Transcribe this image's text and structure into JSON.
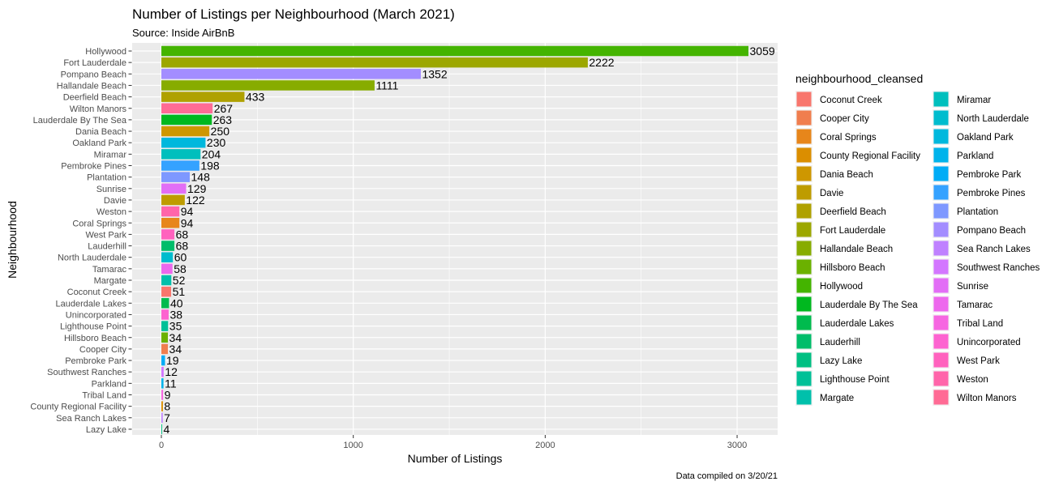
{
  "chart_data": {
    "type": "bar",
    "orientation": "horizontal",
    "title": "Number of Listings per Neighbourhood (March 2021)",
    "subtitle": "Source: Inside AirBnB",
    "caption": "Data compiled on 3/20/21",
    "xlabel": "Number of Listings",
    "ylabel": "Neighbourhood",
    "xlim": [
      0,
      3200
    ],
    "x_ticks": [
      0,
      1000,
      2000,
      3000
    ],
    "x_tick_labels": [
      "0",
      "1000",
      "2000",
      "3000"
    ],
    "grid": true,
    "legend_position": "right",
    "legend_title": "neighbourhood_cleansed",
    "categories": [
      "Hollywood",
      "Fort Lauderdale",
      "Pompano Beach",
      "Hallandale Beach",
      "Deerfield Beach",
      "Wilton Manors",
      "Lauderdale By The Sea",
      "Dania Beach",
      "Oakland Park",
      "Miramar",
      "Pembroke Pines",
      "Plantation",
      "Sunrise",
      "Davie",
      "Weston",
      "Coral Springs",
      "West Park",
      "Lauderhill",
      "North Lauderdale",
      "Tamarac",
      "Margate",
      "Coconut Creek",
      "Lauderdale Lakes",
      "Unincorporated",
      "Lighthouse Point",
      "Hillsboro Beach",
      "Cooper City",
      "Pembroke Park",
      "Southwest Ranches",
      "Parkland",
      "Tribal Land",
      "County Regional Facility",
      "Sea Ranch Lakes",
      "Lazy Lake"
    ],
    "values": [
      3059,
      2222,
      1352,
      1111,
      433,
      267,
      263,
      250,
      230,
      204,
      198,
      148,
      129,
      122,
      94,
      94,
      68,
      68,
      60,
      58,
      52,
      51,
      40,
      38,
      35,
      34,
      34,
      19,
      12,
      11,
      9,
      8,
      7,
      4
    ],
    "legend_items": [
      "Coconut Creek",
      "Cooper City",
      "Coral Springs",
      "County Regional Facility",
      "Dania Beach",
      "Davie",
      "Deerfield Beach",
      "Fort Lauderdale",
      "Hallandale Beach",
      "Hillsboro Beach",
      "Hollywood",
      "Lauderdale By The Sea",
      "Lauderdale Lakes",
      "Lauderhill",
      "Lazy Lake",
      "Lighthouse Point",
      "Margate",
      "Miramar",
      "North Lauderdale",
      "Oakland Park",
      "Parkland",
      "Pembroke Park",
      "Pembroke Pines",
      "Plantation",
      "Pompano Beach",
      "Sea Ranch Lakes",
      "Southwest Ranches",
      "Sunrise",
      "Tamarac",
      "Tribal Land",
      "Unincorporated",
      "West Park",
      "Weston",
      "Wilton Manors"
    ],
    "legend_colors": [
      "#F8766D",
      "#F07E4E",
      "#E7861B",
      "#DB8E00",
      "#CE9700",
      "#BE9C00",
      "#AFA100",
      "#9CA700",
      "#87AC00",
      "#6BB100",
      "#44B400",
      "#00B81F",
      "#00BB4E",
      "#00BD6A",
      "#00BF82",
      "#00C097",
      "#00C0AB",
      "#00BFBD",
      "#00BCCE",
      "#00B8DD",
      "#00B3EB",
      "#00ACF6",
      "#35A2FF",
      "#7E98FF",
      "#A38DFF",
      "#BF81FF",
      "#D376FF",
      "#E26EF6",
      "#ED68ED",
      "#F666E1",
      "#FD63D0",
      "#FF62BE",
      "#FF65AA",
      "#FF6B95"
    ],
    "panel_background": "#EBEBEB",
    "grid_color": "#FFFFFF"
  }
}
